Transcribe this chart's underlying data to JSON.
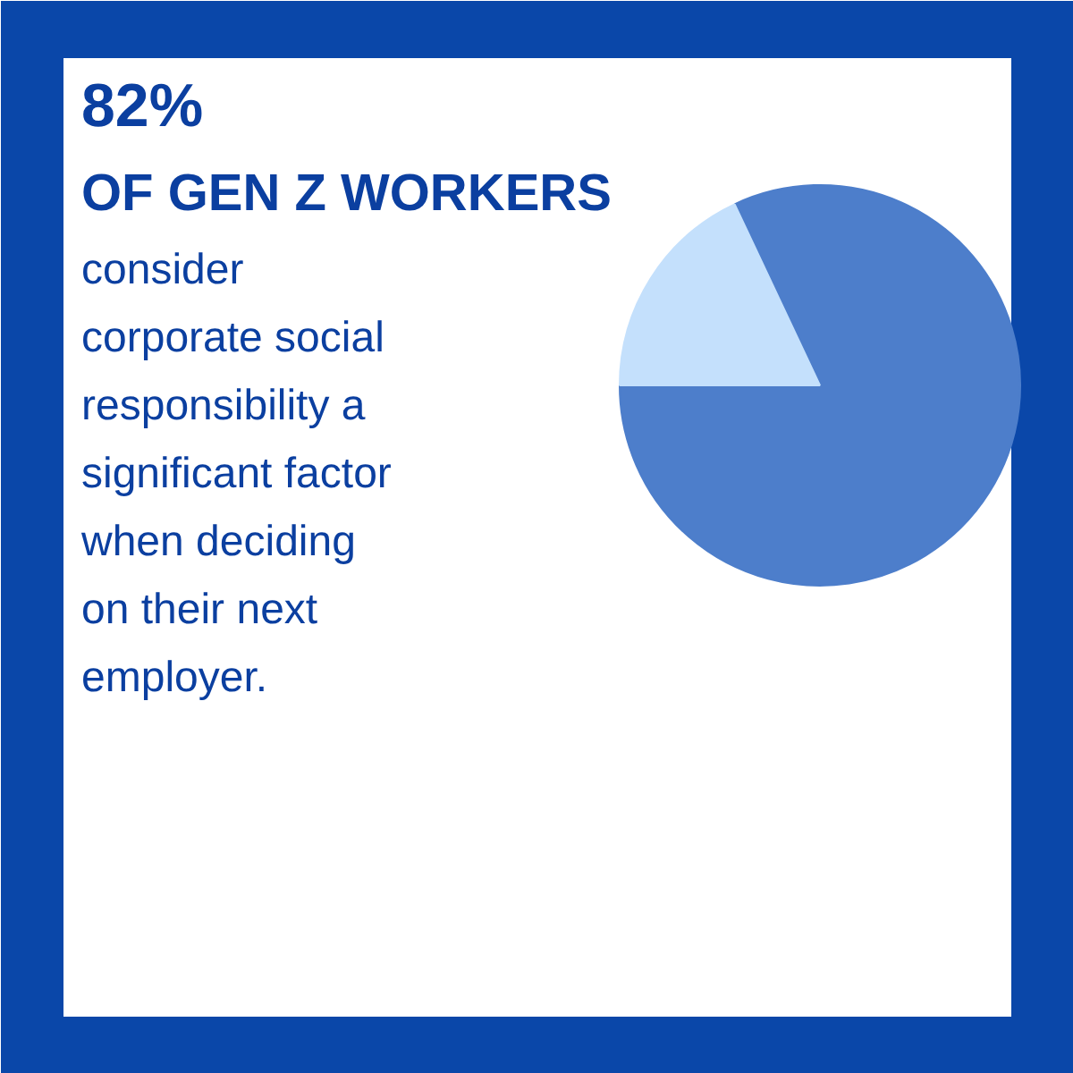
{
  "chart_data": {
    "type": "pie",
    "title": "82%",
    "subtitle": "OF GEN Z WORKERS",
    "annotations": [
      "consider\ncorporate social\nresponsibility a\nsignificant factor\nwhen deciding\non their next\nemployer."
    ],
    "categories": [
      null,
      null
    ],
    "values": [
      82,
      18
    ],
    "colors": [
      "#4d7ecb",
      "#c4e0fc"
    ]
  }
}
